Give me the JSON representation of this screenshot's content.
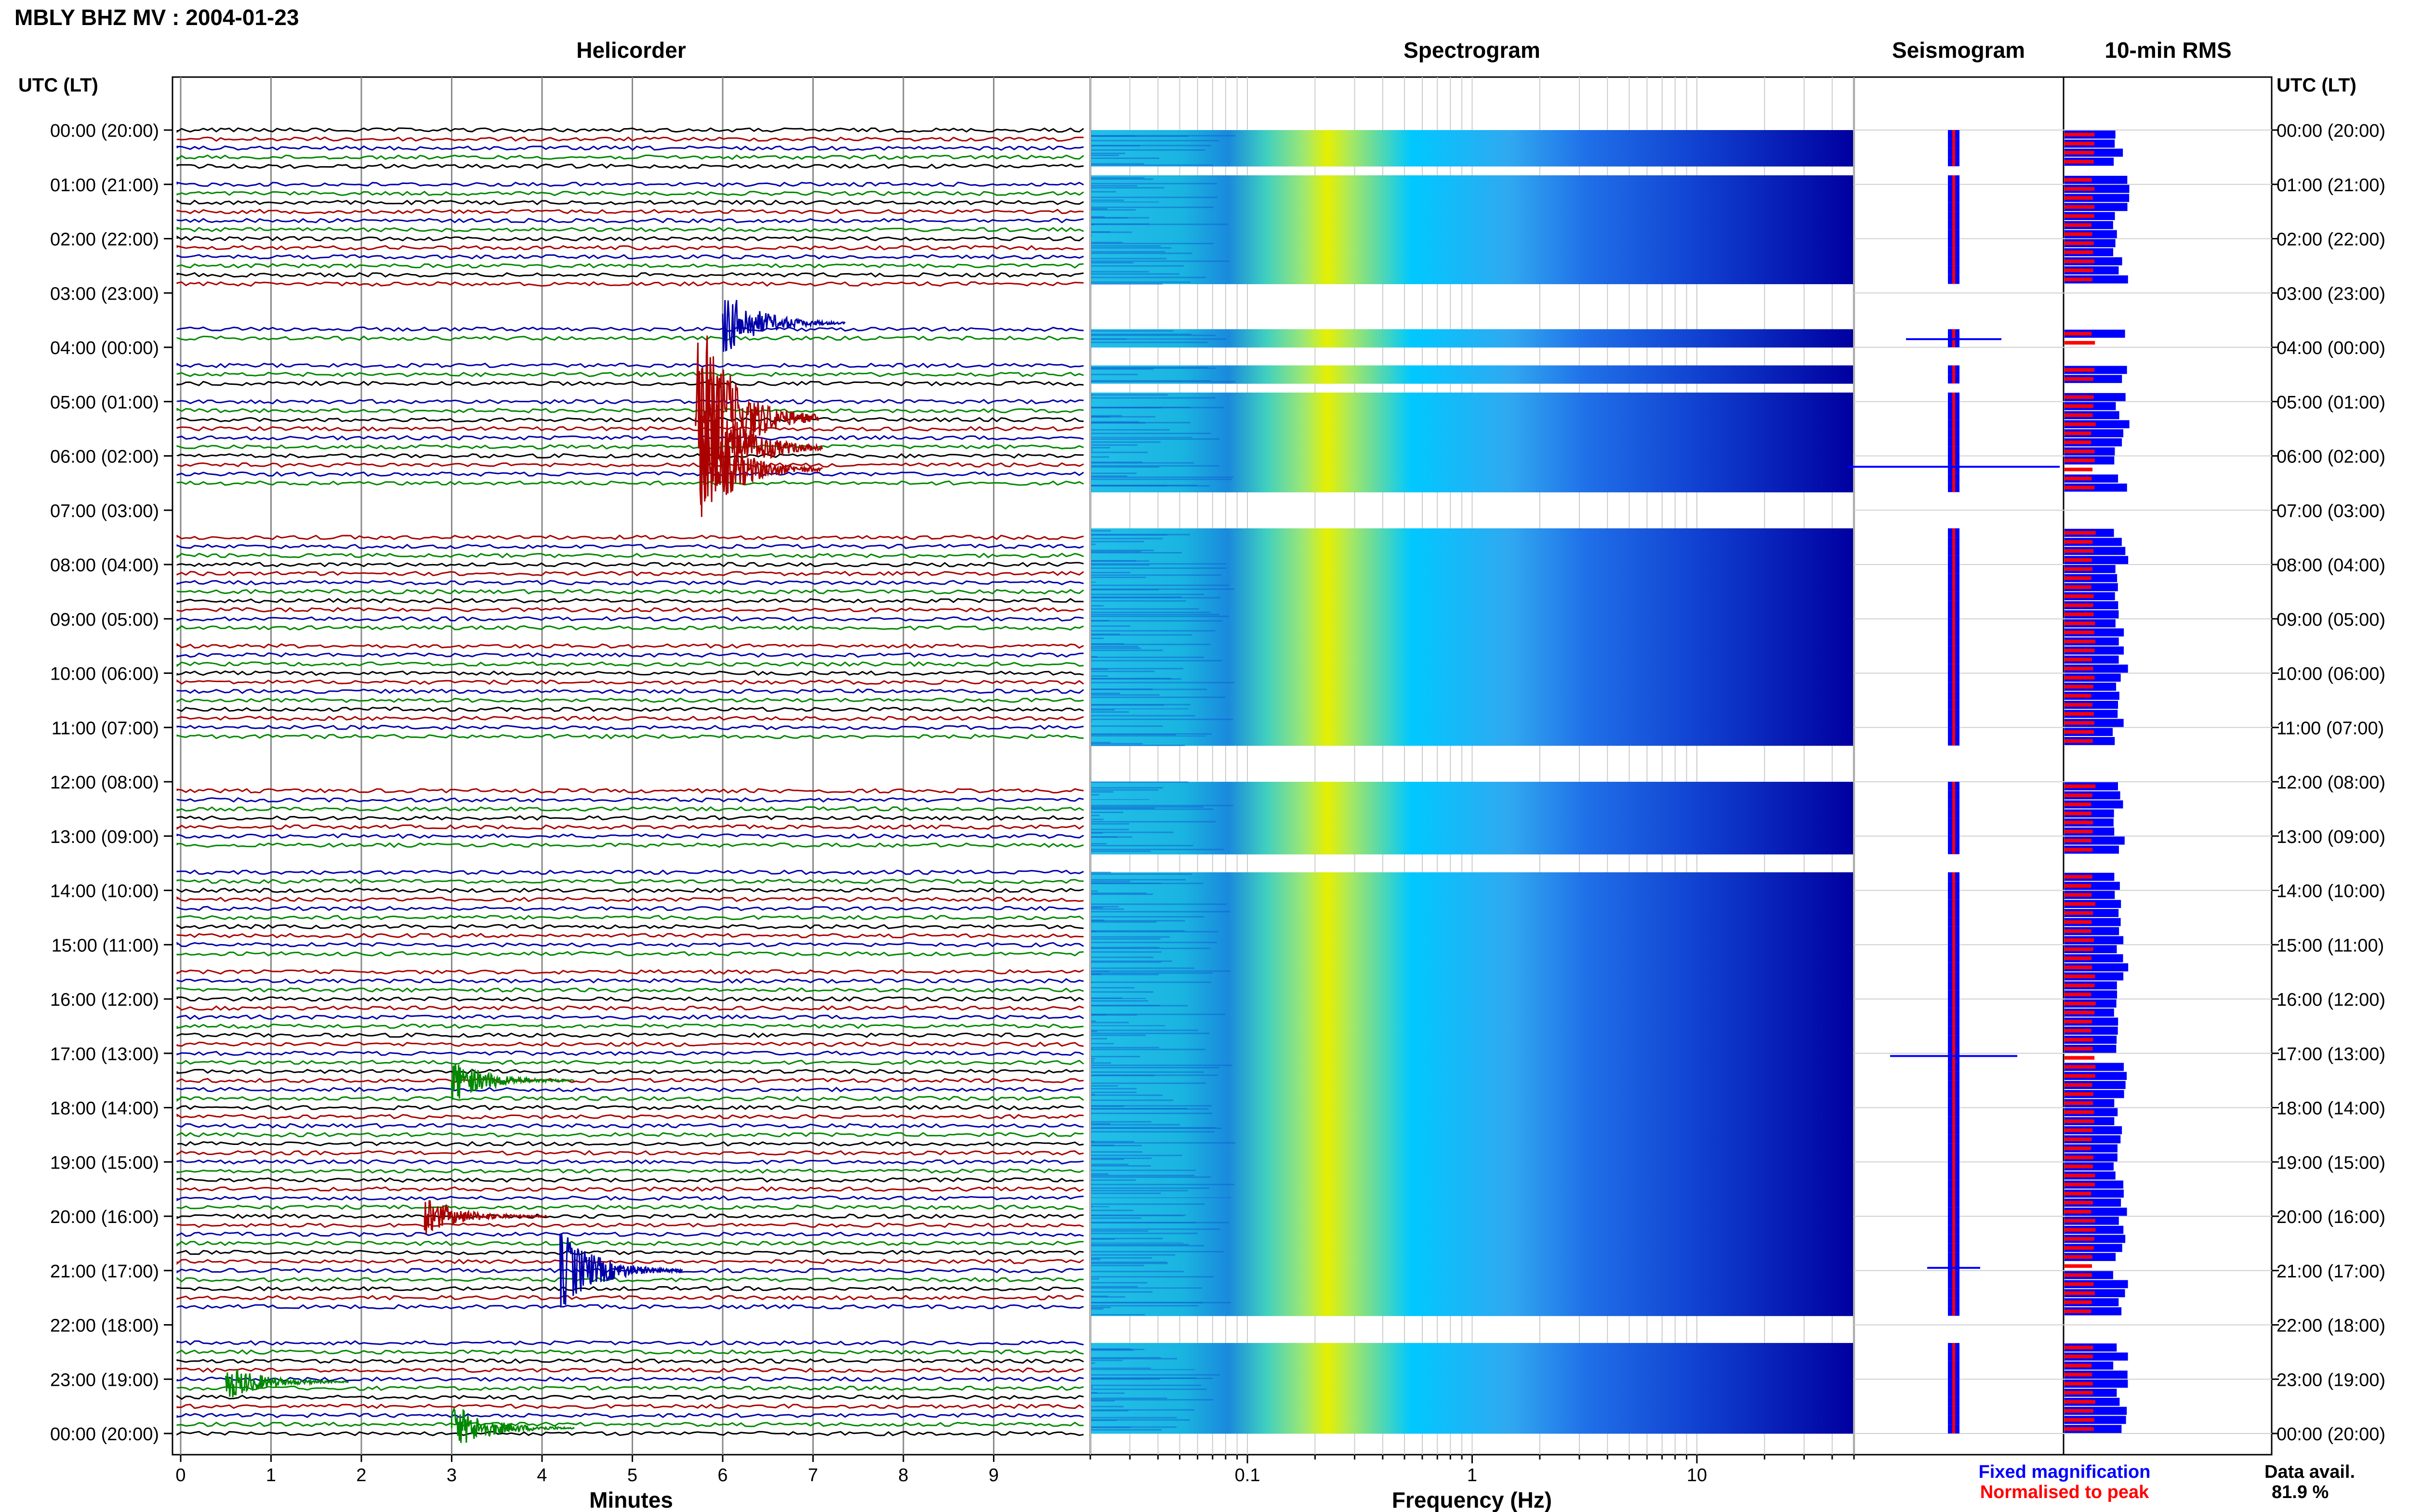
{
  "header": {
    "title": "MBLY BHZ MV : 2004-01-23"
  },
  "panels": {
    "helicorder": "Helicorder",
    "spectrogram": "Spectrogram",
    "seismogram": "Seismogram",
    "rms": "10-min RMS"
  },
  "axis_labels": {
    "left_time": "UTC (LT)",
    "right_time": "UTC (LT)",
    "minutes": "Minutes",
    "frequency": "Frequency (Hz)"
  },
  "time_ticks": [
    "00:00 (20:00)",
    "01:00 (21:00)",
    "02:00 (22:00)",
    "03:00 (23:00)",
    "04:00 (00:00)",
    "05:00 (01:00)",
    "06:00 (02:00)",
    "07:00 (03:00)",
    "08:00 (04:00)",
    "09:00 (05:00)",
    "10:00 (06:00)",
    "11:00 (07:00)",
    "12:00 (08:00)",
    "13:00 (09:00)",
    "14:00 (10:00)",
    "15:00 (11:00)",
    "16:00 (12:00)",
    "17:00 (13:00)",
    "18:00 (14:00)",
    "19:00 (15:00)",
    "20:00 (16:00)",
    "21:00 (17:00)",
    "22:00 (18:00)",
    "23:00 (19:00)",
    "00:00 (20:00)"
  ],
  "minute_ticks": [
    "0",
    "1",
    "2",
    "3",
    "4",
    "5",
    "6",
    "7",
    "8",
    "9"
  ],
  "freq_ticks": [
    "0.1",
    "1",
    "10"
  ],
  "legend": {
    "fixed": "Fixed magnification",
    "normalised": "Normalised to peak",
    "fixed_color": "#0000ff",
    "normalised_color": "#ff0000"
  },
  "data_avail": {
    "label": "Data avail.",
    "value": "81.9 %"
  },
  "colors": {
    "trace_cycle": [
      "#000000",
      "#aa0000",
      "#0000aa",
      "#008800"
    ],
    "rms_fixed": "#0000ff",
    "rms_normalised": "#ff0000",
    "spectrogram_low": "#0000a0",
    "spectrogram_mid": "#00c8ff",
    "spectrogram_high": "#e6f000"
  },
  "chart_data": {
    "type": "heatmap",
    "day_hours": 24,
    "minutes_per_line": 10,
    "data_gaps_hours": [
      [
        0.72,
        0.9
      ],
      [
        2.9,
        3.6
      ],
      [
        3.93,
        4.33
      ],
      [
        4.68,
        4.9
      ],
      [
        6.6,
        7.35
      ],
      [
        9.3,
        9.35
      ],
      [
        11.3,
        12.0
      ],
      [
        13.3,
        13.65
      ],
      [
        15.3,
        15.35
      ],
      [
        21.8,
        22.3
      ]
    ],
    "helicorder_events": [
      {
        "hour": 3.55,
        "minute": 6.0,
        "amplitude": 1.8,
        "color": "#0000aa"
      },
      {
        "hour": 5.3,
        "minute": 5.7,
        "amplitude": 6.0,
        "color": "#aa0000"
      },
      {
        "hour": 5.85,
        "minute": 5.75,
        "amplitude": 4.0,
        "color": "#aa0000"
      },
      {
        "hour": 6.25,
        "minute": 5.75,
        "amplitude": 3.0,
        "color": "#aa0000"
      },
      {
        "hour": 17.5,
        "minute": 3.0,
        "amplitude": 1.2,
        "color": "#008800"
      },
      {
        "hour": 20.0,
        "minute": 2.7,
        "amplitude": 1.0,
        "color": "#aa0000"
      },
      {
        "hour": 21.0,
        "minute": 4.2,
        "amplitude": 2.2,
        "color": "#0000aa"
      },
      {
        "hour": 23.05,
        "minute": 0.5,
        "amplitude": 1.0,
        "color": "#008800"
      },
      {
        "hour": 23.9,
        "minute": 3.0,
        "amplitude": 1.3,
        "color": "#008800"
      }
    ],
    "freq_range_hz": [
      0.02,
      50
    ],
    "rms_spikes": [
      {
        "hour": 3.85,
        "level": 0.45
      },
      {
        "hour": 6.2,
        "level": 1.0
      },
      {
        "hour": 17.05,
        "level": 0.6
      },
      {
        "hour": 20.95,
        "level": 0.25
      }
    ],
    "data_availability_percent": 81.9
  }
}
